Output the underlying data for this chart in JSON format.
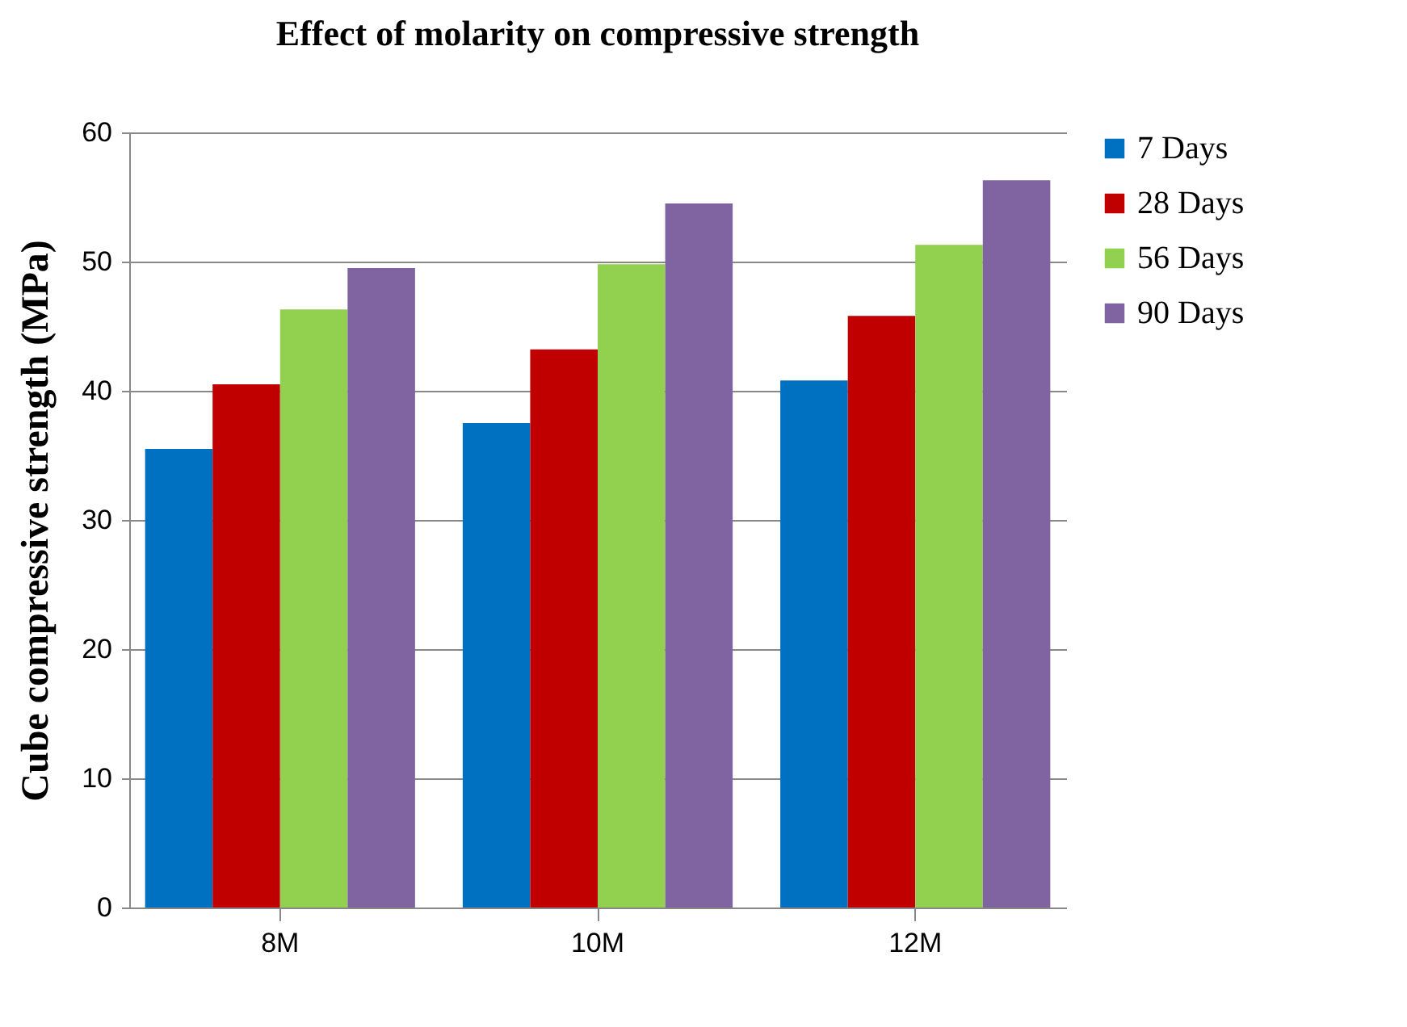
{
  "chart_data": {
    "type": "bar",
    "title": "Effect of molarity on compressive strength",
    "ylabel": "Cube compressive strength (MPa)",
    "categories": [
      "8M",
      "10M",
      "12M"
    ],
    "series": [
      {
        "name": "7 Days",
        "color": "#0070c0",
        "values": [
          35.5,
          37.5,
          40.8
        ]
      },
      {
        "name": "28 Days",
        "color": "#c00000",
        "values": [
          40.5,
          43.2,
          45.8
        ]
      },
      {
        "name": "56 Days",
        "color": "#92d050",
        "values": [
          46.3,
          49.8,
          51.3
        ]
      },
      {
        "name": "90 Days",
        "color": "#8064a2",
        "values": [
          49.5,
          54.5,
          56.3
        ]
      }
    ],
    "ylim": [
      0,
      60
    ],
    "yticks": [
      0,
      10,
      20,
      30,
      40,
      50,
      60
    ],
    "grid": "y",
    "legend": "right"
  }
}
